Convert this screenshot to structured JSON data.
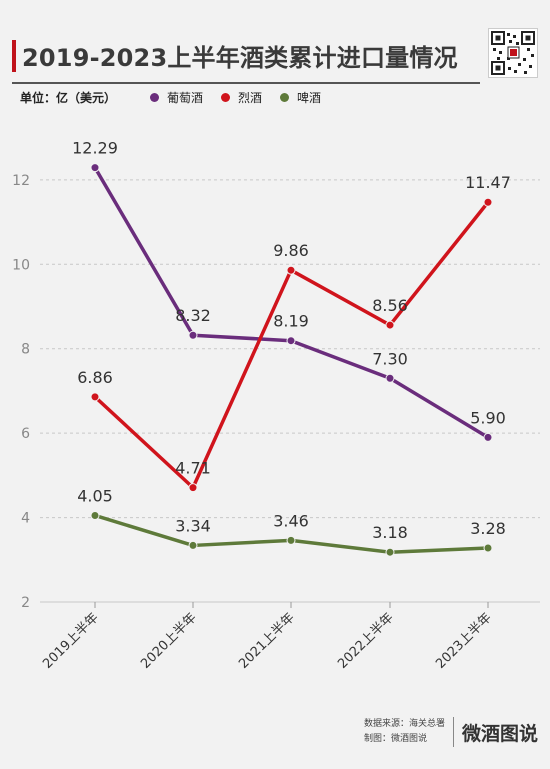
{
  "header": {
    "title": "2019-2023上半年酒类累计进口量情况"
  },
  "legend": {
    "unit_label": "单位：亿（美元）"
  },
  "footer": {
    "source": "数据来源：海关总署",
    "made_by": "制图：微酒图说",
    "brand": "微酒图说"
  },
  "colors": {
    "wine": "#6a2d7c",
    "spirits": "#d0141c",
    "beer": "#5e7a3a"
  },
  "chart_data": {
    "type": "line",
    "categories": [
      "2019上半年",
      "2020上半年",
      "2021上半年",
      "2022上半年",
      "2023上半年"
    ],
    "series": [
      {
        "name": "葡萄酒",
        "color": "#6a2d7c",
        "values": [
          12.29,
          8.32,
          8.19,
          7.3,
          5.9
        ],
        "labels": [
          "12.29",
          "8.32",
          "8.19",
          "7.30",
          "5.90"
        ]
      },
      {
        "name": "烈酒",
        "color": "#d0141c",
        "values": [
          6.86,
          4.71,
          9.86,
          8.56,
          11.47
        ],
        "labels": [
          "6.86",
          "4.71",
          "9.86",
          "8.56",
          "11.47"
        ]
      },
      {
        "name": "啤酒",
        "color": "#5e7a3a",
        "values": [
          4.05,
          3.34,
          3.46,
          3.18,
          3.28
        ],
        "labels": [
          "4.05",
          "3.34",
          "3.46",
          "3.18",
          "3.28"
        ]
      }
    ],
    "yticks": [
      "2",
      "4",
      "6",
      "8",
      "10",
      "12"
    ],
    "ylim": [
      2,
      13.3
    ],
    "grid": true,
    "legend_position": "top-left"
  }
}
